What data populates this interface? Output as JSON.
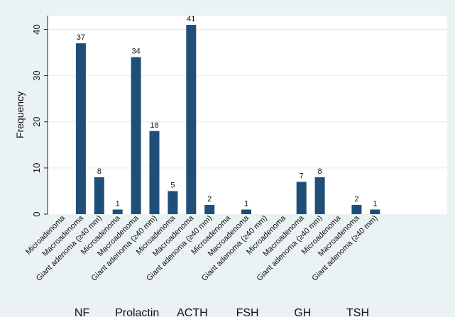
{
  "chart_data": {
    "type": "bar",
    "ylabel": "Frequency",
    "ylim": [
      0,
      43
    ],
    "yticks": [
      0,
      10,
      20,
      30,
      40
    ],
    "grid": true,
    "bar_color": "#1f4e79",
    "plot_background": "#ffffff",
    "page_background": "#eaf2f3",
    "groups": [
      {
        "name": "NF",
        "bars": [
          {
            "label": "Microadenoma",
            "value": 0
          },
          {
            "label": "Macroadenoma",
            "value": 37
          },
          {
            "label": "Giant adenoma (≥40 mm)",
            "value": 8
          }
        ]
      },
      {
        "name": "Prolactin",
        "bars": [
          {
            "label": "Microadenoma",
            "value": 1
          },
          {
            "label": "Macroadenoma",
            "value": 34
          },
          {
            "label": "Giant adenoma (≥40 mm)",
            "value": 18
          }
        ]
      },
      {
        "name": "ACTH",
        "bars": [
          {
            "label": "Microadenoma",
            "value": 5
          },
          {
            "label": "Macroadenoma",
            "value": 41
          },
          {
            "label": "Giant adenoma (≥40 mm)",
            "value": 2
          }
        ]
      },
      {
        "name": "FSH",
        "bars": [
          {
            "label": "Microadenoma",
            "value": 0
          },
          {
            "label": "Macroadenoma",
            "value": 1
          },
          {
            "label": "Giant adenoma (≥40 mm)",
            "value": 0
          }
        ]
      },
      {
        "name": "GH",
        "bars": [
          {
            "label": "Microadenoma",
            "value": 0
          },
          {
            "label": "Macroadenoma",
            "value": 7
          },
          {
            "label": "Giant adenoma (≥40 mm)",
            "value": 8
          }
        ]
      },
      {
        "name": "TSH",
        "bars": [
          {
            "label": "Microadenoma",
            "value": 0
          },
          {
            "label": "Macroadenoma",
            "value": 2
          },
          {
            "label": "Giant adenoma (≥40 mm)",
            "value": 1
          }
        ]
      }
    ]
  }
}
